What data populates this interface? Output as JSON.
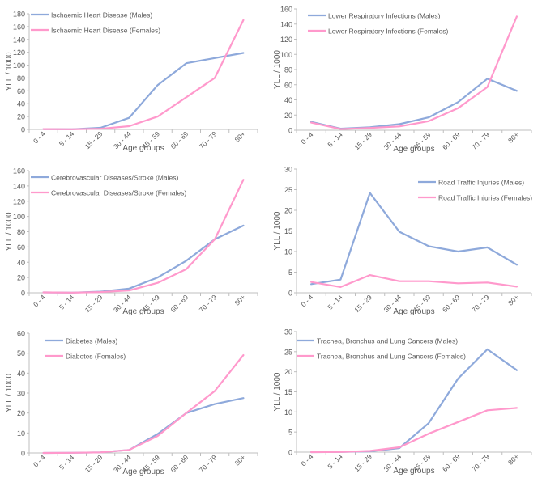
{
  "colors": {
    "males": "#8EA9DB",
    "females": "#FF99CC",
    "axis": "#BFBFBF",
    "text": "#595959"
  },
  "chart_data": [
    {
      "type": "line",
      "categories": [
        "0 - 4",
        "5 - 14",
        "15 - 29",
        "30 - 44",
        "45 - 59",
        "60 - 69",
        "70 - 79",
        "80+"
      ],
      "xlabel": "Age groups",
      "ylabel": "YLL / 1000",
      "ylim": [
        0,
        180
      ],
      "yticks": [
        0,
        20,
        40,
        60,
        80,
        100,
        120,
        140,
        160,
        180
      ],
      "series": [
        {
          "name": "Ischaemic Heart Disease (Males)",
          "values": [
            0.5,
            0.3,
            2.5,
            18,
            69,
            103,
            111,
            119
          ]
        },
        {
          "name": "Ischaemic Heart Disease (Females)",
          "values": [
            0.5,
            0.2,
            1.0,
            5,
            20,
            50,
            80,
            170
          ]
        }
      ]
    },
    {
      "type": "line",
      "categories": [
        "0 - 4",
        "5 - 14",
        "15 - 29",
        "30 - 44",
        "45 - 59",
        "60 - 69",
        "70 - 79",
        "80+"
      ],
      "xlabel": "Age groups",
      "ylabel": "YLL / 1000",
      "ylim": [
        0,
        160
      ],
      "yticks": [
        0,
        20,
        40,
        60,
        80,
        100,
        120,
        140,
        160
      ],
      "series": [
        {
          "name": "Lower Respiratory Infections (Males)",
          "values": [
            11,
            2,
            4,
            8,
            17,
            37,
            68,
            52
          ]
        },
        {
          "name": "Lower Respiratory Infections (Females)",
          "values": [
            10,
            1.5,
            3,
            5,
            12,
            29,
            57,
            150
          ]
        }
      ]
    },
    {
      "type": "line",
      "categories": [
        "0 - 4",
        "5 - 14",
        "15 - 29",
        "30 - 44",
        "45 - 59",
        "60 - 69",
        "70 - 79",
        "80+"
      ],
      "xlabel": "Age groups",
      "ylabel": "YLL / 1000",
      "ylim": [
        0,
        160
      ],
      "yticks": [
        0,
        20,
        40,
        60,
        80,
        100,
        120,
        140,
        160
      ],
      "series": [
        {
          "name": "Cerebrovascular Diseases/Stroke (Males)",
          "values": [
            0.5,
            0.2,
            1.5,
            5.5,
            20,
            42,
            70,
            88
          ]
        },
        {
          "name": "Cerebrovascular Diseases/Stroke (Females)",
          "values": [
            0.5,
            0.2,
            1,
            3,
            13,
            31,
            70,
            148
          ]
        }
      ]
    },
    {
      "type": "line",
      "categories": [
        "0 - 4",
        "5 - 14",
        "15 - 29",
        "30 - 44",
        "45 - 59",
        "60 - 69",
        "70 - 79",
        "80+"
      ],
      "xlabel": "Age groups",
      "ylabel": "YLL / 1000",
      "ylim": [
        0,
        30
      ],
      "yticks": [
        0,
        5,
        10,
        15,
        20,
        25,
        30
      ],
      "series": [
        {
          "name": "Road Traffic Injuries (Males)",
          "values": [
            2.1,
            3.2,
            24.2,
            14.8,
            11.3,
            10.0,
            11.0,
            6.8
          ]
        },
        {
          "name": "Road Traffic Injuries (Females)",
          "values": [
            2.6,
            1.4,
            4.3,
            2.8,
            2.8,
            2.3,
            2.5,
            1.5
          ]
        }
      ]
    },
    {
      "type": "line",
      "categories": [
        "0 - 4",
        "5 - 14",
        "15 - 29",
        "30 - 44",
        "45 - 59",
        "60 - 69",
        "70 - 79",
        "80+"
      ],
      "xlabel": "Age groups",
      "ylabel": "YLL / 1000",
      "ylim": [
        0,
        60
      ],
      "yticks": [
        0,
        10,
        20,
        30,
        40,
        50,
        60
      ],
      "series": [
        {
          "name": "Diabetes (Males)",
          "values": [
            0.0,
            0.1,
            0.3,
            1.5,
            9.5,
            20,
            24.5,
            27.5
          ]
        },
        {
          "name": "Diabetes (Females)",
          "values": [
            0.0,
            0.1,
            0.3,
            1.5,
            8.5,
            20,
            31,
            49
          ]
        }
      ]
    },
    {
      "type": "line",
      "categories": [
        "0 - 4",
        "5 - 14",
        "15 - 29",
        "30 - 44",
        "45 - 59",
        "60 - 69",
        "70 - 79",
        "80+"
      ],
      "xlabel": "Age groups",
      "ylabel": "YLL / 1000",
      "ylim": [
        0,
        30
      ],
      "yticks": [
        0,
        5,
        10,
        15,
        20,
        25,
        30
      ],
      "series": [
        {
          "name": "Trachea, Bronchus and Lung Cancers (Males)",
          "values": [
            0.0,
            0.05,
            0.2,
            1.0,
            7.2,
            18.3,
            25.6,
            20.4
          ]
        },
        {
          "name": "Trachea, Bronchus and Lung Cancers (Females)",
          "values": [
            0.0,
            0.05,
            0.3,
            1.2,
            4.6,
            7.5,
            10.4,
            11.0
          ]
        }
      ]
    }
  ]
}
